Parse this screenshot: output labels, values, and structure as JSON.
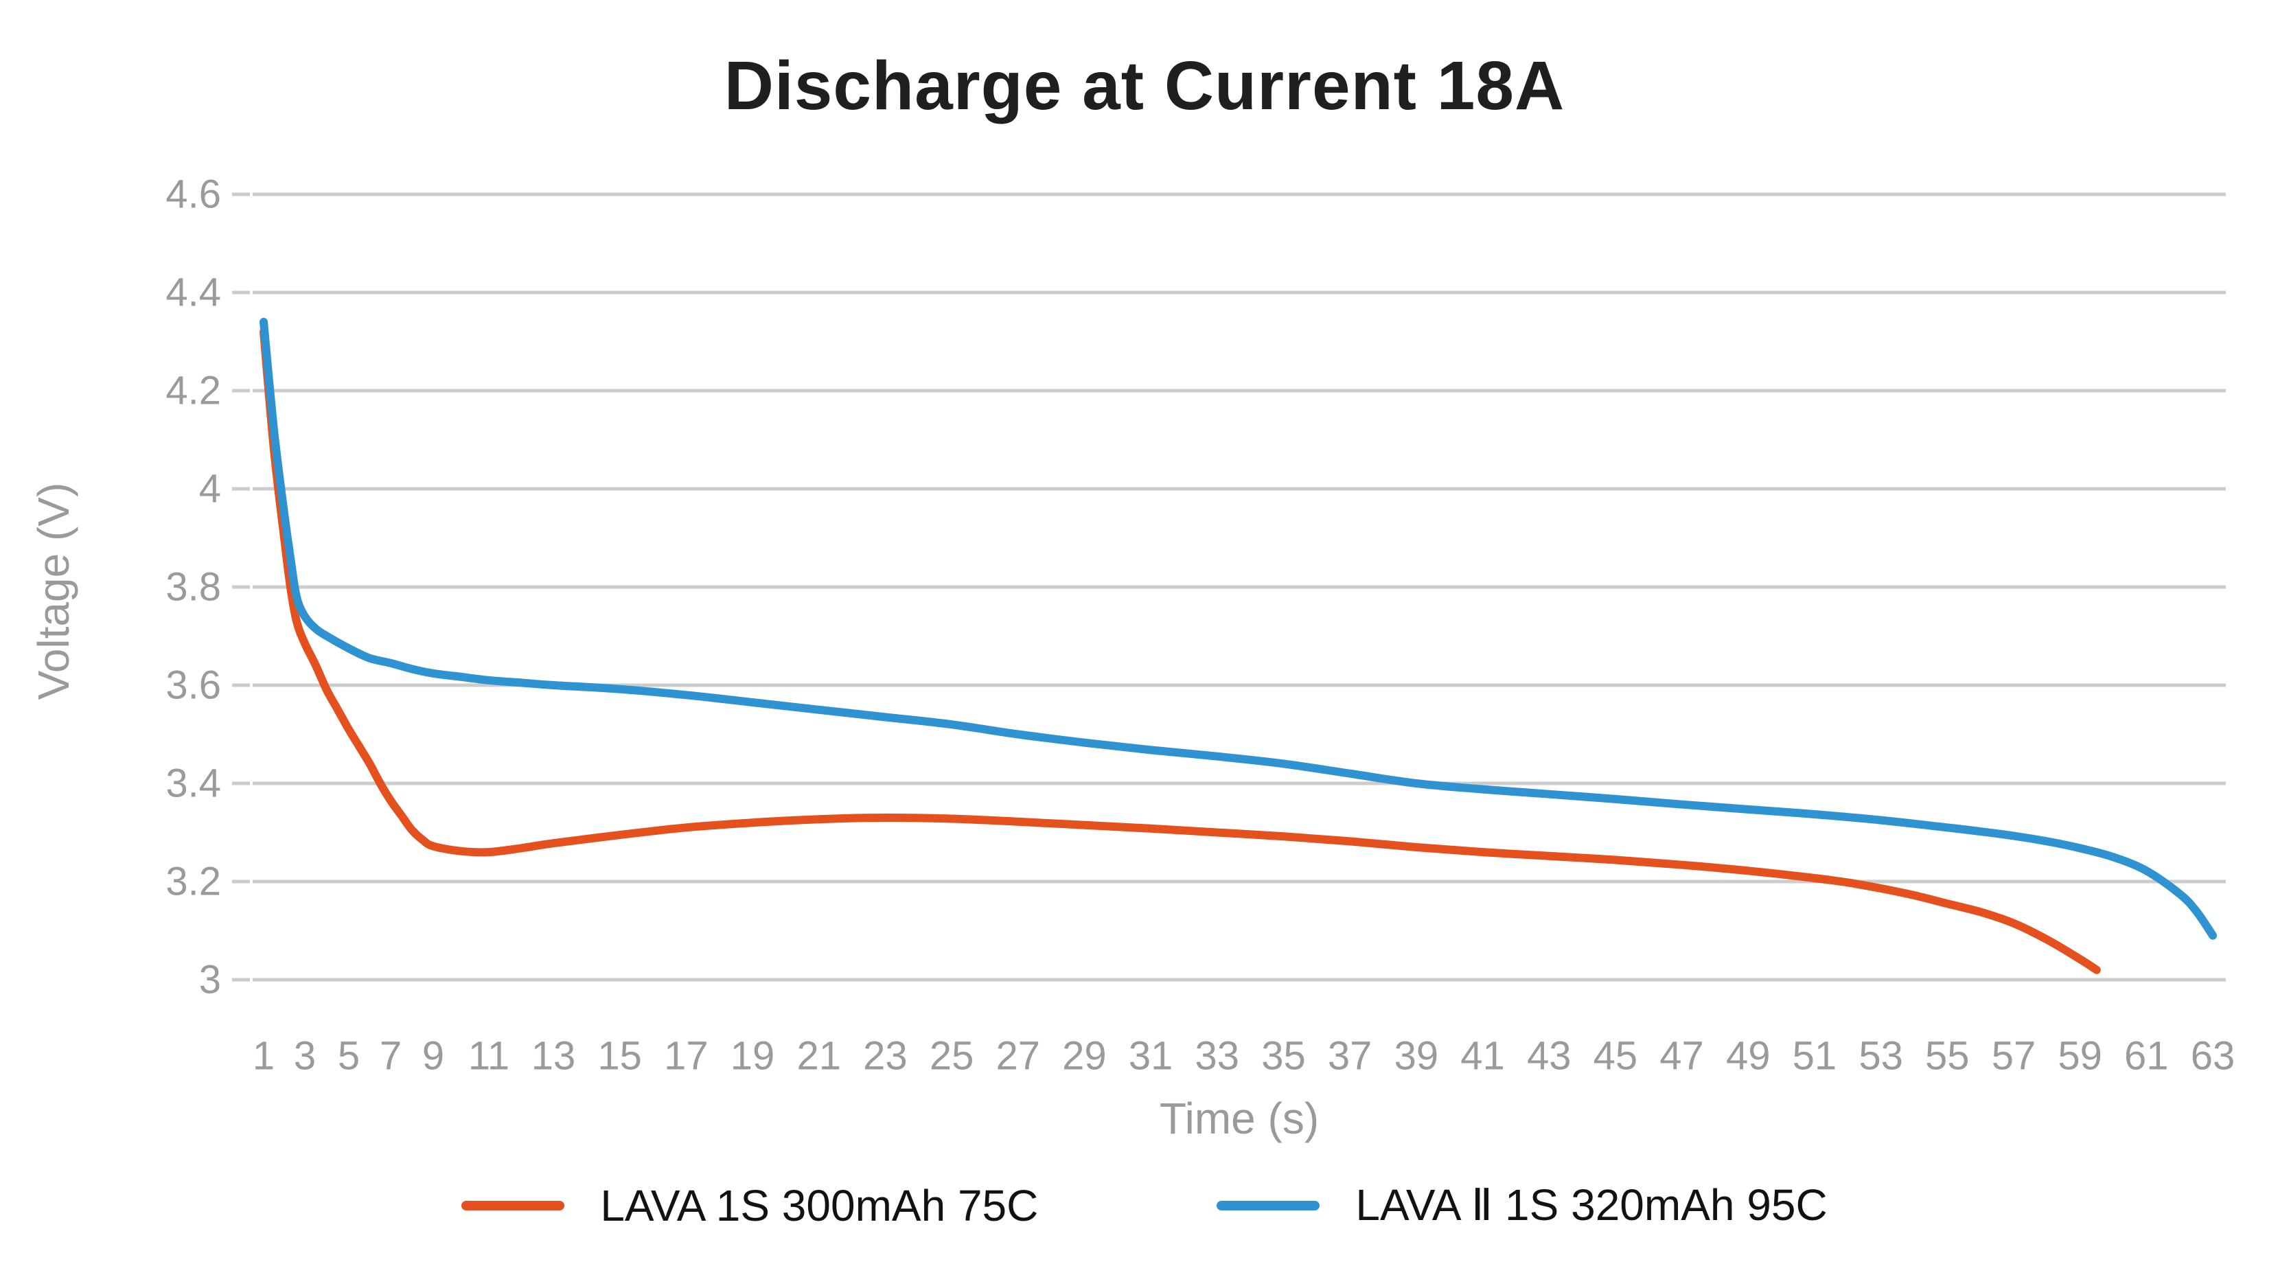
{
  "title": "Discharge at Current 18A",
  "colors": {
    "series_orange": "#E4511E",
    "series_blue": "#2E93D0",
    "gridline": "#CCCCCC",
    "tick_label": "#9A9A9A",
    "axis_name": "#9A9A9A",
    "title_text": "#1F1F1F",
    "legend_text": "#121212",
    "background": "#FFFFFF"
  },
  "legend": {
    "items": [
      {
        "label": "LAVA 1S 300mAh 75C",
        "color": "#E4511E"
      },
      {
        "label": "LAVA Ⅱ 1S 320mAh 95C",
        "color": "#2E93D0"
      }
    ]
  },
  "chart_data": {
    "type": "line",
    "title": "Discharge at Current 18A",
    "xlabel": "Time (s)",
    "ylabel": "Voltage (V)",
    "ylim": [
      3.0,
      4.6
    ],
    "y_tick_values": [
      3,
      3.2,
      3.4,
      3.6,
      3.8,
      4,
      4.2,
      4.4,
      4.6
    ],
    "y_tick_labels": [
      "3",
      "3.2",
      "3.4",
      "3.6",
      "3.8",
      "4",
      "4.2",
      "4.4",
      "4.6"
    ],
    "x_ticks": [
      1,
      3,
      5,
      7,
      9,
      11,
      13,
      15,
      17,
      19,
      21,
      23,
      25,
      27,
      29,
      31,
      33,
      35,
      37,
      39,
      41,
      43,
      45,
      47,
      49,
      51,
      53,
      55,
      57,
      59,
      61,
      63
    ],
    "grid": "horizontal",
    "legend_position": "bottom",
    "series": [
      {
        "name": "LAVA 1S 300mAh 75C",
        "color": "#E4511E",
        "points": [
          [
            1,
            4.32
          ],
          [
            1.5,
            4.08
          ],
          [
            2,
            3.9
          ],
          [
            2.3,
            3.8
          ],
          [
            2.6,
            3.73
          ],
          [
            3,
            3.685
          ],
          [
            3.5,
            3.64
          ],
          [
            4,
            3.59
          ],
          [
            4.5,
            3.55
          ],
          [
            5,
            3.51
          ],
          [
            5.5,
            3.475
          ],
          [
            6,
            3.44
          ],
          [
            6.5,
            3.4
          ],
          [
            7,
            3.365
          ],
          [
            7.5,
            3.335
          ],
          [
            8,
            3.305
          ],
          [
            8.5,
            3.285
          ],
          [
            9,
            3.272
          ],
          [
            10,
            3.262
          ],
          [
            11,
            3.26
          ],
          [
            12,
            3.268
          ],
          [
            13,
            3.278
          ],
          [
            15,
            3.295
          ],
          [
            17,
            3.31
          ],
          [
            19,
            3.32
          ],
          [
            21,
            3.327
          ],
          [
            23,
            3.33
          ],
          [
            25,
            3.328
          ],
          [
            27,
            3.322
          ],
          [
            29,
            3.315
          ],
          [
            31,
            3.308
          ],
          [
            33,
            3.3
          ],
          [
            35,
            3.292
          ],
          [
            37,
            3.282
          ],
          [
            39,
            3.27
          ],
          [
            41,
            3.26
          ],
          [
            43,
            3.252
          ],
          [
            45,
            3.244
          ],
          [
            47,
            3.234
          ],
          [
            49,
            3.222
          ],
          [
            51,
            3.207
          ],
          [
            52,
            3.198
          ],
          [
            53,
            3.186
          ],
          [
            54,
            3.172
          ],
          [
            55,
            3.155
          ],
          [
            56,
            3.138
          ],
          [
            57,
            3.115
          ],
          [
            58,
            3.082
          ],
          [
            59,
            3.042
          ],
          [
            59.5,
            3.02
          ]
        ]
      },
      {
        "name": "LAVA Ⅱ 1S 320mAh 95C",
        "color": "#2E93D0",
        "points": [
          [
            1,
            4.34
          ],
          [
            1.5,
            4.12
          ],
          [
            2,
            3.95
          ],
          [
            2.3,
            3.86
          ],
          [
            2.6,
            3.78
          ],
          [
            3,
            3.74
          ],
          [
            3.5,
            3.715
          ],
          [
            4,
            3.7
          ],
          [
            5,
            3.675
          ],
          [
            6,
            3.655
          ],
          [
            7,
            3.645
          ],
          [
            8,
            3.633
          ],
          [
            9,
            3.624
          ],
          [
            10,
            3.617
          ],
          [
            11,
            3.61
          ],
          [
            12,
            3.605
          ],
          [
            13,
            3.6
          ],
          [
            15,
            3.592
          ],
          [
            17,
            3.58
          ],
          [
            19,
            3.565
          ],
          [
            21,
            3.55
          ],
          [
            23,
            3.535
          ],
          [
            25,
            3.52
          ],
          [
            27,
            3.5
          ],
          [
            29,
            3.483
          ],
          [
            31,
            3.468
          ],
          [
            33,
            3.455
          ],
          [
            35,
            3.44
          ],
          [
            37,
            3.42
          ],
          [
            39,
            3.4
          ],
          [
            41,
            3.388
          ],
          [
            43,
            3.378
          ],
          [
            45,
            3.368
          ],
          [
            47,
            3.357
          ],
          [
            49,
            3.347
          ],
          [
            51,
            3.337
          ],
          [
            53,
            3.325
          ],
          [
            55,
            3.31
          ],
          [
            56,
            3.302
          ],
          [
            57,
            3.293
          ],
          [
            58,
            3.282
          ],
          [
            59,
            3.268
          ],
          [
            60,
            3.25
          ],
          [
            61,
            3.222
          ],
          [
            62,
            3.175
          ],
          [
            62.5,
            3.14
          ],
          [
            63,
            3.09
          ]
        ]
      }
    ]
  }
}
